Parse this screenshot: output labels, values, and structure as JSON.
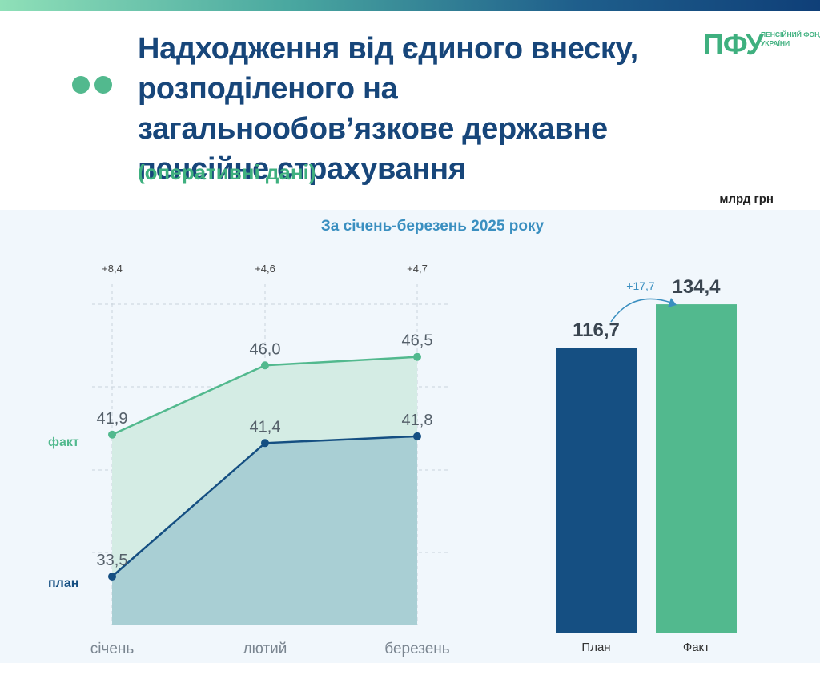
{
  "header": {
    "title": "Надходження від єдиного внеску, розподіленого на загальнообов’язкове державне пенсійне страхування",
    "subtitle": "(оперативні дані)",
    "unit": "млрд грн",
    "period": "За січень-березень 2025 року"
  },
  "logo": {
    "mark": "ПФУ",
    "text": "ПЕНСІЙНИЙ ФОНД УКРАЇНИ"
  },
  "colors": {
    "plan": "#154f82",
    "fact": "#52b98e",
    "title": "#17467a",
    "accent": "#3fb07f"
  },
  "chart_data": [
    {
      "type": "area",
      "categories": [
        "січень",
        "лютий",
        "березень"
      ],
      "series": [
        {
          "name": "факт",
          "values": [
            41.9,
            46.0,
            46.5
          ],
          "labels": [
            "41,9",
            "46,0",
            "46,5"
          ]
        },
        {
          "name": "план",
          "values": [
            33.5,
            41.4,
            41.8
          ],
          "labels": [
            "33,5",
            "41,4",
            "41,8"
          ]
        }
      ],
      "differences": [
        "+8,4",
        "+4,6",
        "+4,7"
      ],
      "grid": true
    },
    {
      "type": "bar",
      "categories": [
        "План",
        "Факт"
      ],
      "values": [
        116.7,
        134.4
      ],
      "labels": [
        "116,7",
        "134,4"
      ],
      "difference": "+17,7"
    }
  ]
}
